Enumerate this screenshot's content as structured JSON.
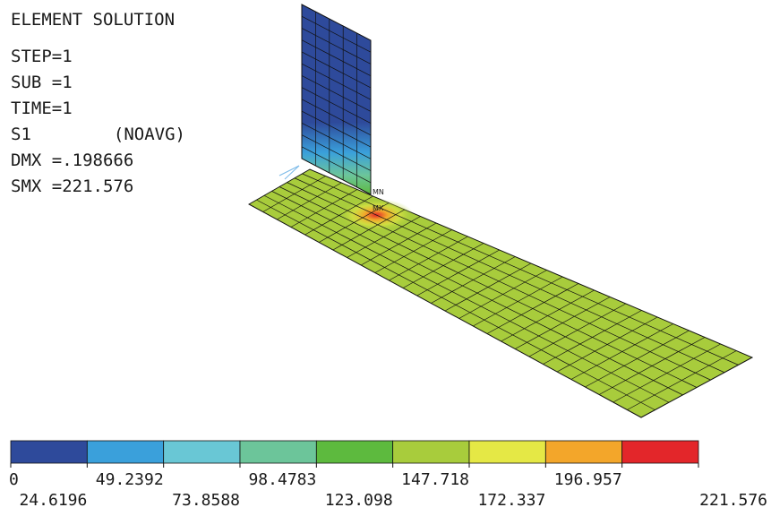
{
  "info": {
    "title": "ELEMENT SOLUTION",
    "step": "STEP=1",
    "sub": "SUB =1",
    "time": "TIME=1",
    "result": "S1",
    "avg_mode": "(NOAVG)",
    "dmx": "DMX =.198666",
    "smx": "SMX =221.576"
  },
  "markers": {
    "min": "MN",
    "max": "MX"
  },
  "legend": {
    "colors": [
      "#2e4a9b",
      "#3aa0db",
      "#69c7d5",
      "#6cc59a",
      "#5dba3e",
      "#a8cc3c",
      "#e5e845",
      "#f3a62a",
      "#e3262a"
    ],
    "labels_top": [
      "0",
      "49.2392",
      "98.4783",
      "147.718",
      "196.957"
    ],
    "labels_bottom": [
      "24.6196",
      "73.8588",
      "123.098",
      "172.337",
      "221.576"
    ]
  },
  "mesh_colors": {
    "plate": "#a8cc3c",
    "wall": "#2e4a9b",
    "hotspot": "#e3262a",
    "lines": "#111111"
  }
}
